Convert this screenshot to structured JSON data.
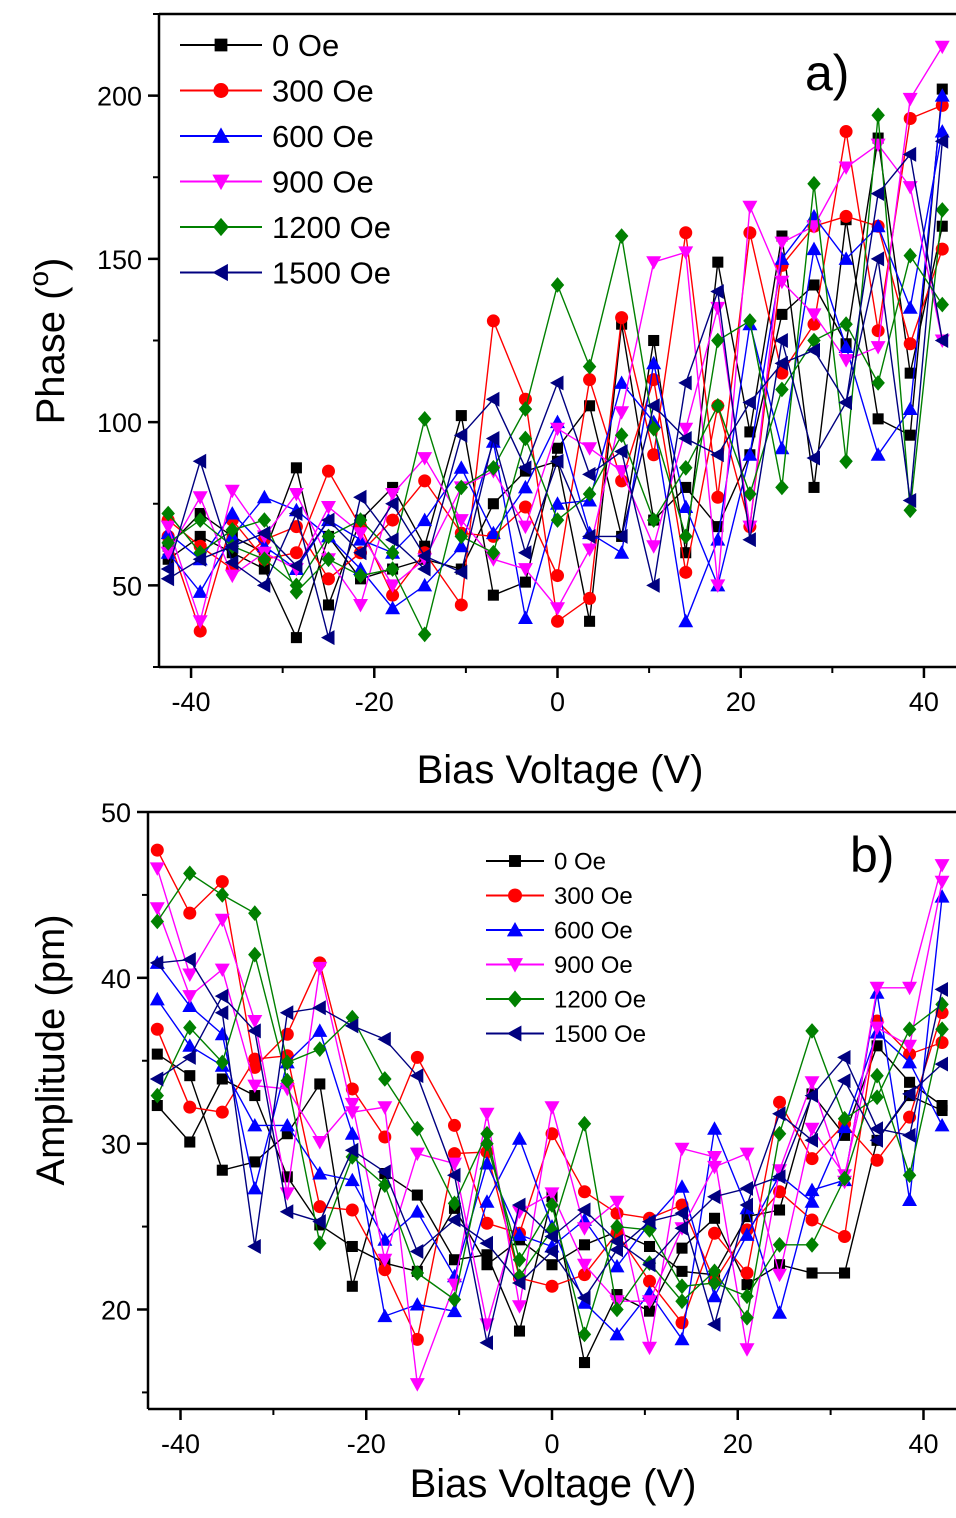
{
  "chart_data": [
    {
      "type": "line",
      "panel_label": "a)",
      "xlabel": "Bias Voltage (V)",
      "ylabel_main": "Phase (",
      "ylabel_sup": "o",
      "ylabel_close": ")",
      "xlim": [
        -43.5,
        43.5
      ],
      "ylim": [
        25,
        225
      ],
      "xticks": [
        "-40",
        "-20",
        "0",
        "20",
        "40"
      ],
      "yticks": [
        "50",
        "100",
        "150",
        "200"
      ],
      "legend_position": "top-left",
      "x": [
        -42.5,
        -39,
        -35.5,
        -32,
        -28.5,
        -25,
        -21.5,
        -18,
        -14.5,
        -10.5,
        -7,
        -3.5,
        0,
        3.5,
        7,
        10.5,
        14,
        17.5,
        21,
        24.5,
        28,
        31.5,
        35,
        38.5,
        42
      ],
      "series": [
        {
          "name": "0 Oe",
          "color": "#000000",
          "marker": "square",
          "values": [
            62,
            72,
            65,
            60,
            86,
            44,
            70,
            80,
            62,
            102,
            47,
            51,
            92,
            105,
            65,
            125,
            60,
            149,
            97,
            157,
            80,
            162,
            101,
            96,
            202
          ],
          "values2": [
            58,
            65,
            60,
            55,
            34,
            65,
            52,
            55,
            58,
            55,
            75,
            85,
            88,
            39,
            130,
            70,
            80,
            68,
            90,
            133,
            142,
            124,
            187,
            115,
            160
          ]
        },
        {
          "name": "300 Oe",
          "color": "#ff0000",
          "marker": "circle",
          "values": [
            65,
            36,
            70,
            58,
            60,
            85,
            68,
            47,
            60,
            44,
            131,
            107,
            39,
            46,
            132,
            90,
            158,
            77,
            158,
            115,
            130,
            189,
            128,
            193,
            197
          ],
          "values2": [
            70,
            62,
            55,
            64,
            68,
            52,
            60,
            70,
            82,
            66,
            65,
            74,
            53,
            113,
            82,
            113,
            54,
            105,
            68,
            148,
            160,
            163,
            160,
            124,
            153
          ]
        },
        {
          "name": "600 Oe",
          "color": "#0000ff",
          "marker": "triangle-up",
          "values": [
            60,
            48,
            65,
            77,
            73,
            65,
            55,
            43,
            50,
            62,
            94,
            40,
            75,
            76,
            112,
            100,
            39,
            64,
            130,
            92,
            153,
            123,
            90,
            104,
            200
          ],
          "values2": [
            66,
            58,
            72,
            62,
            55,
            70,
            64,
            60,
            70,
            86,
            66,
            80,
            100,
            66,
            60,
            118,
            74,
            50,
            90,
            150,
            163,
            150,
            160,
            135,
            189
          ]
        },
        {
          "name": "900 Oe",
          "color": "#ff00ff",
          "marker": "triangle-down",
          "values": [
            68,
            39,
            79,
            65,
            78,
            58,
            44,
            78,
            89,
            70,
            58,
            55,
            43,
            61,
            103,
            149,
            152,
            50,
            166,
            143,
            133,
            119,
            123,
            199,
            215
          ],
          "values2": [
            60,
            77,
            53,
            60,
            55,
            74,
            66,
            50,
            58,
            80,
            85,
            68,
            98,
            92,
            85,
            62,
            98,
            135,
            68,
            155,
            160,
            178,
            185,
            172,
            125
          ]
        },
        {
          "name": "1200 Oe",
          "color": "#008000",
          "marker": "diamond",
          "values": [
            72,
            60,
            67,
            70,
            48,
            58,
            53,
            55,
            35,
            80,
            86,
            104,
            142,
            117,
            157,
            98,
            65,
            125,
            131,
            80,
            173,
            88,
            194,
            73,
            165
          ],
          "values2": [
            63,
            70,
            62,
            58,
            50,
            65,
            70,
            60,
            101,
            65,
            60,
            95,
            70,
            78,
            96,
            70,
            86,
            105,
            78,
            110,
            125,
            130,
            112,
            151,
            136
          ]
        },
        {
          "name": "1500 Oe",
          "color": "#000080",
          "marker": "triangle-left",
          "values": [
            55,
            88,
            57,
            50,
            72,
            34,
            77,
            64,
            55,
            96,
            107,
            86,
            112,
            84,
            91,
            50,
            112,
            140,
            64,
            125,
            89,
            106,
            150,
            76,
            186
          ],
          "values2": [
            52,
            58,
            62,
            66,
            56,
            70,
            60,
            75,
            59,
            54,
            95,
            60,
            88,
            65,
            65,
            105,
            95,
            90,
            106,
            118,
            122,
            106,
            170,
            182,
            125
          ]
        }
      ]
    },
    {
      "type": "line",
      "panel_label": "b)",
      "xlabel": "Bias Voltage (V)",
      "ylabel": "Amplitude (pm)",
      "xlim": [
        -43.5,
        43.5
      ],
      "ylim": [
        14,
        50
      ],
      "xticks": [
        "-40",
        "-20",
        "0",
        "20",
        "40"
      ],
      "yticks": [
        "20",
        "30",
        "40",
        "50"
      ],
      "legend_position": "top-right",
      "x": [
        -42.5,
        -39,
        -35.5,
        -32,
        -28.5,
        -25,
        -21.5,
        -18,
        -14.5,
        -10.5,
        -7,
        -3.5,
        0,
        3.5,
        7,
        10.5,
        14,
        17.5,
        21,
        24.5,
        28,
        31.5,
        35,
        38.5,
        42
      ],
      "series": [
        {
          "name": "0 Oe",
          "color": "#000000",
          "marker": "square",
          "values": [
            35.4,
            34.1,
            28.4,
            28.9,
            30.6,
            33.6,
            21.4,
            28.2,
            26.9,
            23.0,
            23.3,
            18.7,
            26.8,
            16.8,
            20.9,
            19.9,
            23.7,
            25.5,
            21.5,
            22.7,
            22.2,
            22.2,
            30.2,
            32.9,
            32.0
          ],
          "values2": [
            32.3,
            30.1,
            33.9,
            32.9,
            28.0,
            25.1,
            23.8,
            22.8,
            22.3,
            26.1,
            22.7,
            24.2,
            22.7,
            23.9,
            24.7,
            23.8,
            22.3,
            22.1,
            25.6,
            26.0,
            33.0,
            30.5,
            35.9,
            33.7,
            32.3
          ]
        },
        {
          "name": "300 Oe",
          "color": "#ff0000",
          "marker": "circle",
          "values": [
            47.7,
            43.9,
            45.8,
            34.6,
            36.6,
            40.9,
            33.3,
            30.4,
            35.2,
            31.1,
            25.2,
            24.6,
            30.6,
            27.1,
            25.8,
            25.5,
            26.3,
            21.7,
            24.8,
            27.1,
            25.4,
            24.4,
            37.4,
            35.4,
            36.1
          ],
          "values2": [
            36.9,
            32.2,
            31.9,
            35.1,
            35.3,
            26.2,
            26.0,
            22.4,
            18.2,
            29.4,
            29.5,
            21.9,
            21.4,
            22.1,
            24.6,
            21.7,
            19.2,
            24.6,
            22.2,
            32.5,
            29.1,
            31.2,
            29.0,
            31.6,
            37.9
          ]
        },
        {
          "name": "600 Oe",
          "color": "#0000ff",
          "marker": "triangle-up",
          "values": [
            40.9,
            38.3,
            36.6,
            27.3,
            34.9,
            36.8,
            30.6,
            19.6,
            20.3,
            19.9,
            26.5,
            30.3,
            25.0,
            20.4,
            18.5,
            21.0,
            18.2,
            30.9,
            26.1,
            19.8,
            27.2,
            27.8,
            39.1,
            26.6,
            44.9
          ],
          "values2": [
            38.7,
            35.9,
            34.7,
            31.1,
            31.1,
            28.2,
            27.8,
            24.2,
            25.9,
            22.0,
            28.8,
            24.5,
            23.8,
            25.4,
            22.6,
            25.2,
            27.4,
            20.8,
            24.5,
            28.1,
            26.5,
            31.0,
            36.7,
            34.9,
            31.1
          ]
        },
        {
          "name": "900 Oe",
          "color": "#ff00ff",
          "marker": "triangle-down",
          "values": [
            46.6,
            40.2,
            43.5,
            37.4,
            27.0,
            40.6,
            31.9,
            32.2,
            15.5,
            21.5,
            31.8,
            20.2,
            32.2,
            24.9,
            26.5,
            17.7,
            29.7,
            29.2,
            17.6,
            28.4,
            33.7,
            27.7,
            39.4,
            39.4,
            46.8
          ],
          "values2": [
            44.2,
            38.9,
            40.5,
            33.5,
            33.3,
            30.1,
            32.4,
            23.0,
            29.4,
            28.8,
            19.1,
            25.9,
            27.0,
            22.7,
            20.5,
            20.5,
            24.9,
            28.6,
            29.4,
            22.1,
            30.9,
            28.1,
            37.0,
            35.9,
            45.8
          ]
        },
        {
          "name": "1200 Oe",
          "color": "#008000",
          "marker": "diamond",
          "values": [
            43.4,
            46.3,
            45.0,
            43.9,
            34.9,
            35.7,
            37.6,
            33.9,
            30.9,
            26.4,
            30.6,
            22.0,
            24.8,
            31.2,
            20.0,
            22.8,
            20.5,
            22.3,
            19.5,
            30.6,
            36.8,
            31.5,
            32.8,
            36.9,
            38.4
          ],
          "values2": [
            32.9,
            37.0,
            34.9,
            41.4,
            33.8,
            24.0,
            29.2,
            27.5,
            22.2,
            20.6,
            30.0,
            23.0,
            26.3,
            18.5,
            25.0,
            24.8,
            21.4,
            21.6,
            20.8,
            23.9,
            23.9,
            27.9,
            34.1,
            28.1,
            36.9
          ]
        },
        {
          "name": "1500 Oe",
          "color": "#000080",
          "marker": "triangle-left",
          "values": [
            40.9,
            41.1,
            37.9,
            23.8,
            37.9,
            38.2,
            37.1,
            36.3,
            34.1,
            28.1,
            18.0,
            26.3,
            24.4,
            26.0,
            24.1,
            22.7,
            24.9,
            26.8,
            27.3,
            28.0,
            32.9,
            35.2,
            30.9,
            30.5,
            39.3
          ],
          "values2": [
            33.9,
            35.2,
            38.9,
            36.8,
            25.9,
            25.3,
            29.6,
            28.3,
            23.5,
            25.4,
            24.0,
            21.6,
            23.5,
            20.7,
            23.6,
            25.3,
            25.8,
            19.1,
            26.3,
            31.8,
            30.2,
            33.8,
            30.2,
            33.0,
            34.8
          ]
        }
      ]
    }
  ]
}
